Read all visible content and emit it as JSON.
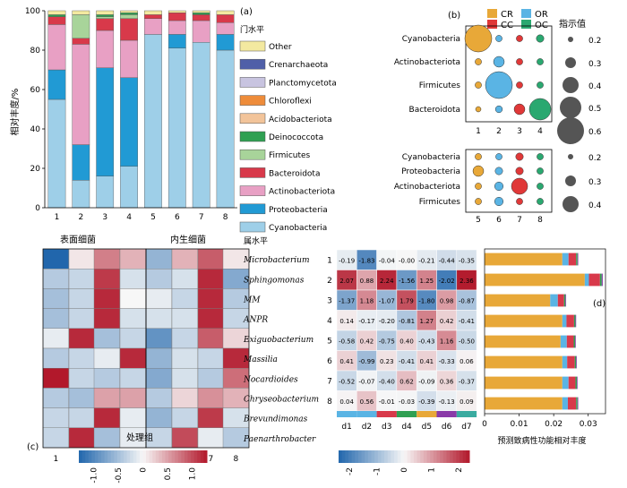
{
  "panel_labels": {
    "a": "(a)",
    "b": "(b)",
    "c": "(c)",
    "d": "(d)"
  },
  "colors": {
    "Other": "#f3e9a0",
    "Crenarchaeota": "#4f5fa8",
    "Planctomycetota": "#c8c4e0",
    "Chloroflexi": "#ee8c3a",
    "Acidobacteriota": "#f2c49a",
    "Deinococcota": "#2fa052",
    "Firmicutes": "#a8d49a",
    "Bacteroidota": "#d8394a",
    "Actinobacteriota": "#e8a0c4",
    "Proteobacteria": "#219ad4",
    "Cyanobacteria": "#9ecfe8",
    "CR": "#e8a838",
    "OR": "#5ab4e4",
    "CC": "#e03838",
    "OC": "#2aa870"
  },
  "chart_data": [
    {
      "id": "a",
      "type": "bar",
      "stacked": true,
      "ylabel": "相对丰度/%",
      "ylim": [
        0,
        100
      ],
      "yticks": [
        0,
        20,
        40,
        60,
        80,
        100
      ],
      "categories": [
        "1",
        "2",
        "3",
        "4",
        "5",
        "6",
        "7",
        "8"
      ],
      "legend_title": "门水平",
      "legend": [
        "Other",
        "Crenarchaeota",
        "Planctomycetota",
        "Chloroflexi",
        "Acidobacteriota",
        "Deinococcota",
        "Firmicutes",
        "Bacteroidota",
        "Actinobacteriota",
        "Proteobacteria",
        "Cyanobacteria"
      ],
      "series": [
        {
          "name": "Cyanobacteria",
          "values": [
            55,
            14,
            16,
            21,
            88,
            81,
            84,
            80
          ]
        },
        {
          "name": "Proteobacteria",
          "values": [
            15,
            18,
            55,
            45,
            0,
            7,
            0,
            8
          ]
        },
        {
          "name": "Actinobacteriota",
          "values": [
            23,
            51,
            19,
            19,
            8,
            7,
            11,
            6
          ]
        },
        {
          "name": "Bacteroidota",
          "values": [
            4,
            3,
            6,
            11,
            2,
            4,
            3,
            4
          ]
        },
        {
          "name": "Firmicutes",
          "values": [
            0,
            12,
            1,
            2,
            0,
            0,
            0,
            0
          ]
        },
        {
          "name": "Deinococcota",
          "values": [
            1,
            0,
            1,
            1,
            0,
            0,
            1,
            0
          ]
        },
        {
          "name": "Acidobacteriota",
          "values": [
            0,
            0,
            0,
            0,
            0,
            0,
            0,
            0
          ]
        },
        {
          "name": "Chloroflexi",
          "values": [
            0,
            0,
            0,
            0,
            0,
            0,
            0,
            0
          ]
        },
        {
          "name": "Planctomycetota",
          "values": [
            0,
            0,
            0,
            0,
            0,
            0,
            0,
            0
          ]
        },
        {
          "name": "Crenarchaeota",
          "values": [
            0,
            0,
            0,
            0,
            0,
            0,
            0,
            0
          ]
        },
        {
          "name": "Other",
          "values": [
            2,
            2,
            2,
            1,
            2,
            1,
            1,
            2
          ]
        }
      ]
    },
    {
      "id": "b",
      "type": "scatter",
      "legend": [
        "CR",
        "OR",
        "CC",
        "OC"
      ],
      "size_legend_title": "指示值",
      "size_legend": [
        0.2,
        0.3,
        0.4,
        0.5,
        0.6
      ],
      "top": {
        "rows": [
          "Cyanobacteria",
          "Actinobacteriota",
          "Firmicutes",
          "Bacteroidota"
        ],
        "x": [
          "1",
          "2",
          "3",
          "4"
        ],
        "points": [
          {
            "row": "Cyanobacteria",
            "col": "1",
            "value": 0.6
          },
          {
            "row": "Cyanobacteria",
            "col": "2",
            "value": 0.22
          },
          {
            "row": "Cyanobacteria",
            "col": "3",
            "value": 0.22
          },
          {
            "row": "Cyanobacteria",
            "col": "4",
            "value": 0.24
          },
          {
            "row": "Actinobacteriota",
            "col": "1",
            "value": 0.22
          },
          {
            "row": "Actinobacteriota",
            "col": "2",
            "value": 0.3
          },
          {
            "row": "Actinobacteriota",
            "col": "3",
            "value": 0.22
          },
          {
            "row": "Actinobacteriota",
            "col": "4",
            "value": 0.22
          },
          {
            "row": "Firmicutes",
            "col": "1",
            "value": 0.22
          },
          {
            "row": "Firmicutes",
            "col": "2",
            "value": 0.6
          },
          {
            "row": "Firmicutes",
            "col": "3",
            "value": 0.22
          },
          {
            "row": "Firmicutes",
            "col": "4",
            "value": 0.22
          },
          {
            "row": "Bacteroidota",
            "col": "1",
            "value": 0.2
          },
          {
            "row": "Bacteroidota",
            "col": "2",
            "value": 0.23
          },
          {
            "row": "Bacteroidota",
            "col": "3",
            "value": 0.3
          },
          {
            "row": "Bacteroidota",
            "col": "4",
            "value": 0.5
          }
        ]
      },
      "top_size_legend": [
        0.2,
        0.3,
        0.4,
        0.5,
        0.6
      ],
      "bottom": {
        "rows": [
          "Cyanobacteria",
          "Proteobacteria",
          "Actinobacteriota",
          "Firmicutes"
        ],
        "x": [
          "5",
          "6",
          "7",
          "8"
        ],
        "points": [
          {
            "row": "Cyanobacteria",
            "col": "5",
            "value": 0.22
          },
          {
            "row": "Cyanobacteria",
            "col": "6",
            "value": 0.22
          },
          {
            "row": "Cyanobacteria",
            "col": "7",
            "value": 0.24
          },
          {
            "row": "Cyanobacteria",
            "col": "8",
            "value": 0.22
          },
          {
            "row": "Proteobacteria",
            "col": "5",
            "value": 0.3
          },
          {
            "row": "Proteobacteria",
            "col": "6",
            "value": 0.24
          },
          {
            "row": "Proteobacteria",
            "col": "7",
            "value": 0.24
          },
          {
            "row": "Proteobacteria",
            "col": "8",
            "value": 0.22
          },
          {
            "row": "Actinobacteriota",
            "col": "5",
            "value": 0.22
          },
          {
            "row": "Actinobacteriota",
            "col": "6",
            "value": 0.26
          },
          {
            "row": "Actinobacteriota",
            "col": "7",
            "value": 0.4
          },
          {
            "row": "Actinobacteriota",
            "col": "8",
            "value": 0.22
          },
          {
            "row": "Firmicutes",
            "col": "5",
            "value": 0.22
          },
          {
            "row": "Firmicutes",
            "col": "6",
            "value": 0.26
          },
          {
            "row": "Firmicutes",
            "col": "7",
            "value": 0.22
          },
          {
            "row": "Firmicutes",
            "col": "8",
            "value": 0.22
          }
        ]
      },
      "bottom_size_legend": [
        0.2,
        0.3,
        0.4
      ]
    },
    {
      "id": "c",
      "type": "heatmap",
      "group_labels": [
        "表面细菌",
        "内生细菌"
      ],
      "row_title": "属水平",
      "xlabel": "处理组",
      "x": [
        "1",
        "2",
        "3",
        "4",
        "5",
        "6",
        "7",
        "8"
      ],
      "rows": [
        "Microbacterium",
        "Sphingomonas",
        "MM",
        "ANPR",
        "Exiguobacterium",
        "Massilia",
        "Nocardioides",
        "Chryseobacterium",
        "Brevundimonas",
        "Paenarthrobacter"
      ],
      "values": [
        [
          -1.3,
          0.1,
          0.7,
          0.4,
          -0.6,
          0.4,
          0.9,
          0.1
        ],
        [
          -0.4,
          -0.3,
          1.1,
          -0.2,
          -0.4,
          -0.2,
          1.2,
          -0.7
        ],
        [
          -0.5,
          -0.3,
          1.2,
          0.0,
          -0.1,
          -0.3,
          1.2,
          -0.4
        ],
        [
          -0.5,
          -0.3,
          1.2,
          -0.2,
          -0.2,
          -0.2,
          1.2,
          -0.3
        ],
        [
          -0.1,
          1.2,
          -0.5,
          -0.3,
          -0.9,
          -0.3,
          0.9,
          0.2
        ],
        [
          -0.4,
          -0.3,
          -0.1,
          1.2,
          -0.6,
          -0.2,
          -0.3,
          1.2
        ],
        [
          1.3,
          -0.3,
          -0.4,
          -0.3,
          -0.7,
          -0.2,
          -0.4,
          0.8
        ],
        [
          -0.4,
          -0.5,
          0.5,
          0.5,
          -0.4,
          0.2,
          0.6,
          0.4
        ],
        [
          -0.3,
          -0.3,
          1.2,
          -0.1,
          -0.6,
          -0.3,
          1.1,
          -0.2
        ],
        [
          -0.3,
          1.2,
          -0.5,
          -0.1,
          -0.3,
          1.0,
          -0.1,
          -0.4
        ]
      ],
      "colorbar_ticks": [
        "-1.0",
        "-0.5",
        "0",
        "0.5",
        "1.0"
      ],
      "colorbar_range": [
        -1.3,
        1.3
      ]
    },
    {
      "id": "d_heatmap",
      "type": "heatmap",
      "rows": [
        "1",
        "2",
        "3",
        "4",
        "5",
        "6",
        "7",
        "8"
      ],
      "x": [
        "d1",
        "d2",
        "d3",
        "d4",
        "d5",
        "d6",
        "d7"
      ],
      "values": [
        [
          -0.19,
          -1.83,
          -0.04,
          -0.0,
          -0.21,
          -0.44,
          -0.35
        ],
        [
          2.07,
          0.88,
          2.24,
          -1.56,
          1.25,
          -2.02,
          2.36
        ],
        [
          -1.37,
          1.18,
          -1.07,
          1.79,
          -1.8,
          0.98,
          -0.87
        ],
        [
          0.14,
          -0.17,
          -0.2,
          -0.81,
          1.27,
          0.42,
          -0.41
        ],
        [
          -0.58,
          0.42,
          -0.75,
          0.4,
          -0.43,
          1.16,
          -0.5
        ],
        [
          0.41,
          -0.99,
          0.23,
          -0.41,
          0.41,
          -0.33,
          0.06
        ],
        [
          -0.52,
          -0.07,
          -0.4,
          0.62,
          -0.09,
          0.36,
          -0.37
        ],
        [
          0.04,
          0.56,
          -0.01,
          -0.03,
          -0.39,
          -0.13,
          0.09
        ]
      ],
      "labels": [
        [
          "-0.19",
          "-1.83",
          "-0.04",
          "-0.00",
          "-0.21",
          "-0.44",
          "-0.35"
        ],
        [
          "2.07",
          "0.88",
          "2.24",
          "-1.56",
          "1.25",
          "-2.02",
          "2.36"
        ],
        [
          "-1.37",
          "1.18",
          "-1.07",
          "1.79",
          "-1.80",
          "0.98",
          "-0.87"
        ],
        [
          "0.14",
          "-0.17",
          "-0.20",
          "-0.81",
          "1.27",
          "0.42",
          "-0.41"
        ],
        [
          "-0.58",
          "0.42",
          "-0.75",
          "0.40",
          "-0.43",
          "1.16",
          "-0.50"
        ],
        [
          "0.41",
          "-0.99",
          "0.23",
          "-0.41",
          "0.41",
          "-0.33",
          "0.06"
        ],
        [
          "-0.52",
          "-0.07",
          "-0.40",
          "0.62",
          "-0.09",
          "0.36",
          "-0.37"
        ],
        [
          "0.04",
          "0.56",
          "-0.01",
          "-0.03",
          "-0.39",
          "-0.13",
          "0.09"
        ]
      ],
      "column_colors": [
        "#5ab4e4",
        "#5ab4e4",
        "#d8394a",
        "#2fa052",
        "#e8a838",
        "#8a3aa8",
        "#3aaba0"
      ],
      "colorbar_ticks": [
        "-2",
        "-1",
        "0",
        "1",
        "2"
      ],
      "colorbar_range": [
        -2.4,
        2.4
      ]
    },
    {
      "id": "d_bar",
      "type": "bar",
      "orientation": "horizontal",
      "stacked": true,
      "xlabel": "预测致病性功能相对丰度",
      "xlim": [
        0,
        0.035
      ],
      "xticks": [
        "0",
        "0.01",
        "0.02",
        "0.03"
      ],
      "categories": [
        "1",
        "2",
        "3",
        "4",
        "5",
        "6",
        "7",
        "8"
      ],
      "series": [
        {
          "name": "d5",
          "color": "#e8a838",
          "values": [
            0.0225,
            0.029,
            0.019,
            0.0225,
            0.022,
            0.0225,
            0.0225,
            0.0225
          ]
        },
        {
          "name": "d1",
          "color": "#5ab4e4",
          "values": [
            0.0018,
            0.0012,
            0.0022,
            0.0012,
            0.0018,
            0.0014,
            0.0018,
            0.0016
          ]
        },
        {
          "name": "d3",
          "color": "#d8394a",
          "values": [
            0.0022,
            0.0032,
            0.0018,
            0.0022,
            0.002,
            0.0022,
            0.002,
            0.0024
          ]
        },
        {
          "name": "d4",
          "color": "#2fa052",
          "values": [
            0.0004,
            0.0005,
            0.0004,
            0.0004,
            0.0004,
            0.0004,
            0.0004,
            0.0004
          ]
        },
        {
          "name": "d6",
          "color": "#8a3aa8",
          "values": [
            0.0002,
            0.0003,
            0.0002,
            0.0002,
            0.0002,
            0.0002,
            0.0002,
            0.0002
          ]
        }
      ]
    }
  ]
}
